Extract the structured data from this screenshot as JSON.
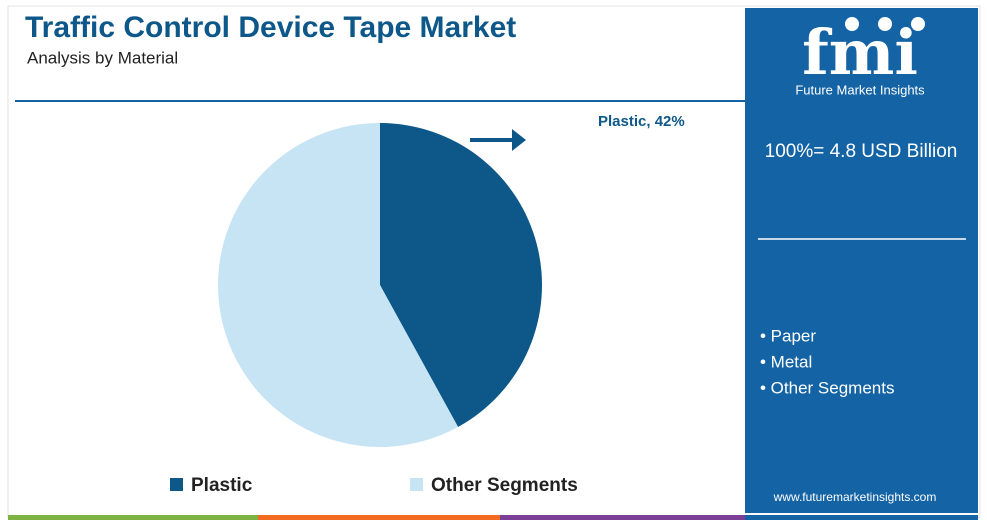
{
  "chart_data": {
    "type": "pie",
    "title": "Traffic Control Device Tape Market",
    "subtitle": "Analysis by Material",
    "categories": [
      "Plastic",
      "Other Segments"
    ],
    "values": [
      42,
      58
    ],
    "value_labels": [
      "Plastic, 42%",
      null
    ],
    "colors": [
      "#0d5889",
      "#c7e4f5"
    ]
  },
  "sidebar": {
    "brand": "fmi",
    "brand_name": "Future Market Insights",
    "total": "100%= 4.8 USD Billion",
    "segments": [
      "• Paper",
      "• Metal",
      "• Other Segments"
    ],
    "website": "www.futuremarketinsights.com"
  }
}
